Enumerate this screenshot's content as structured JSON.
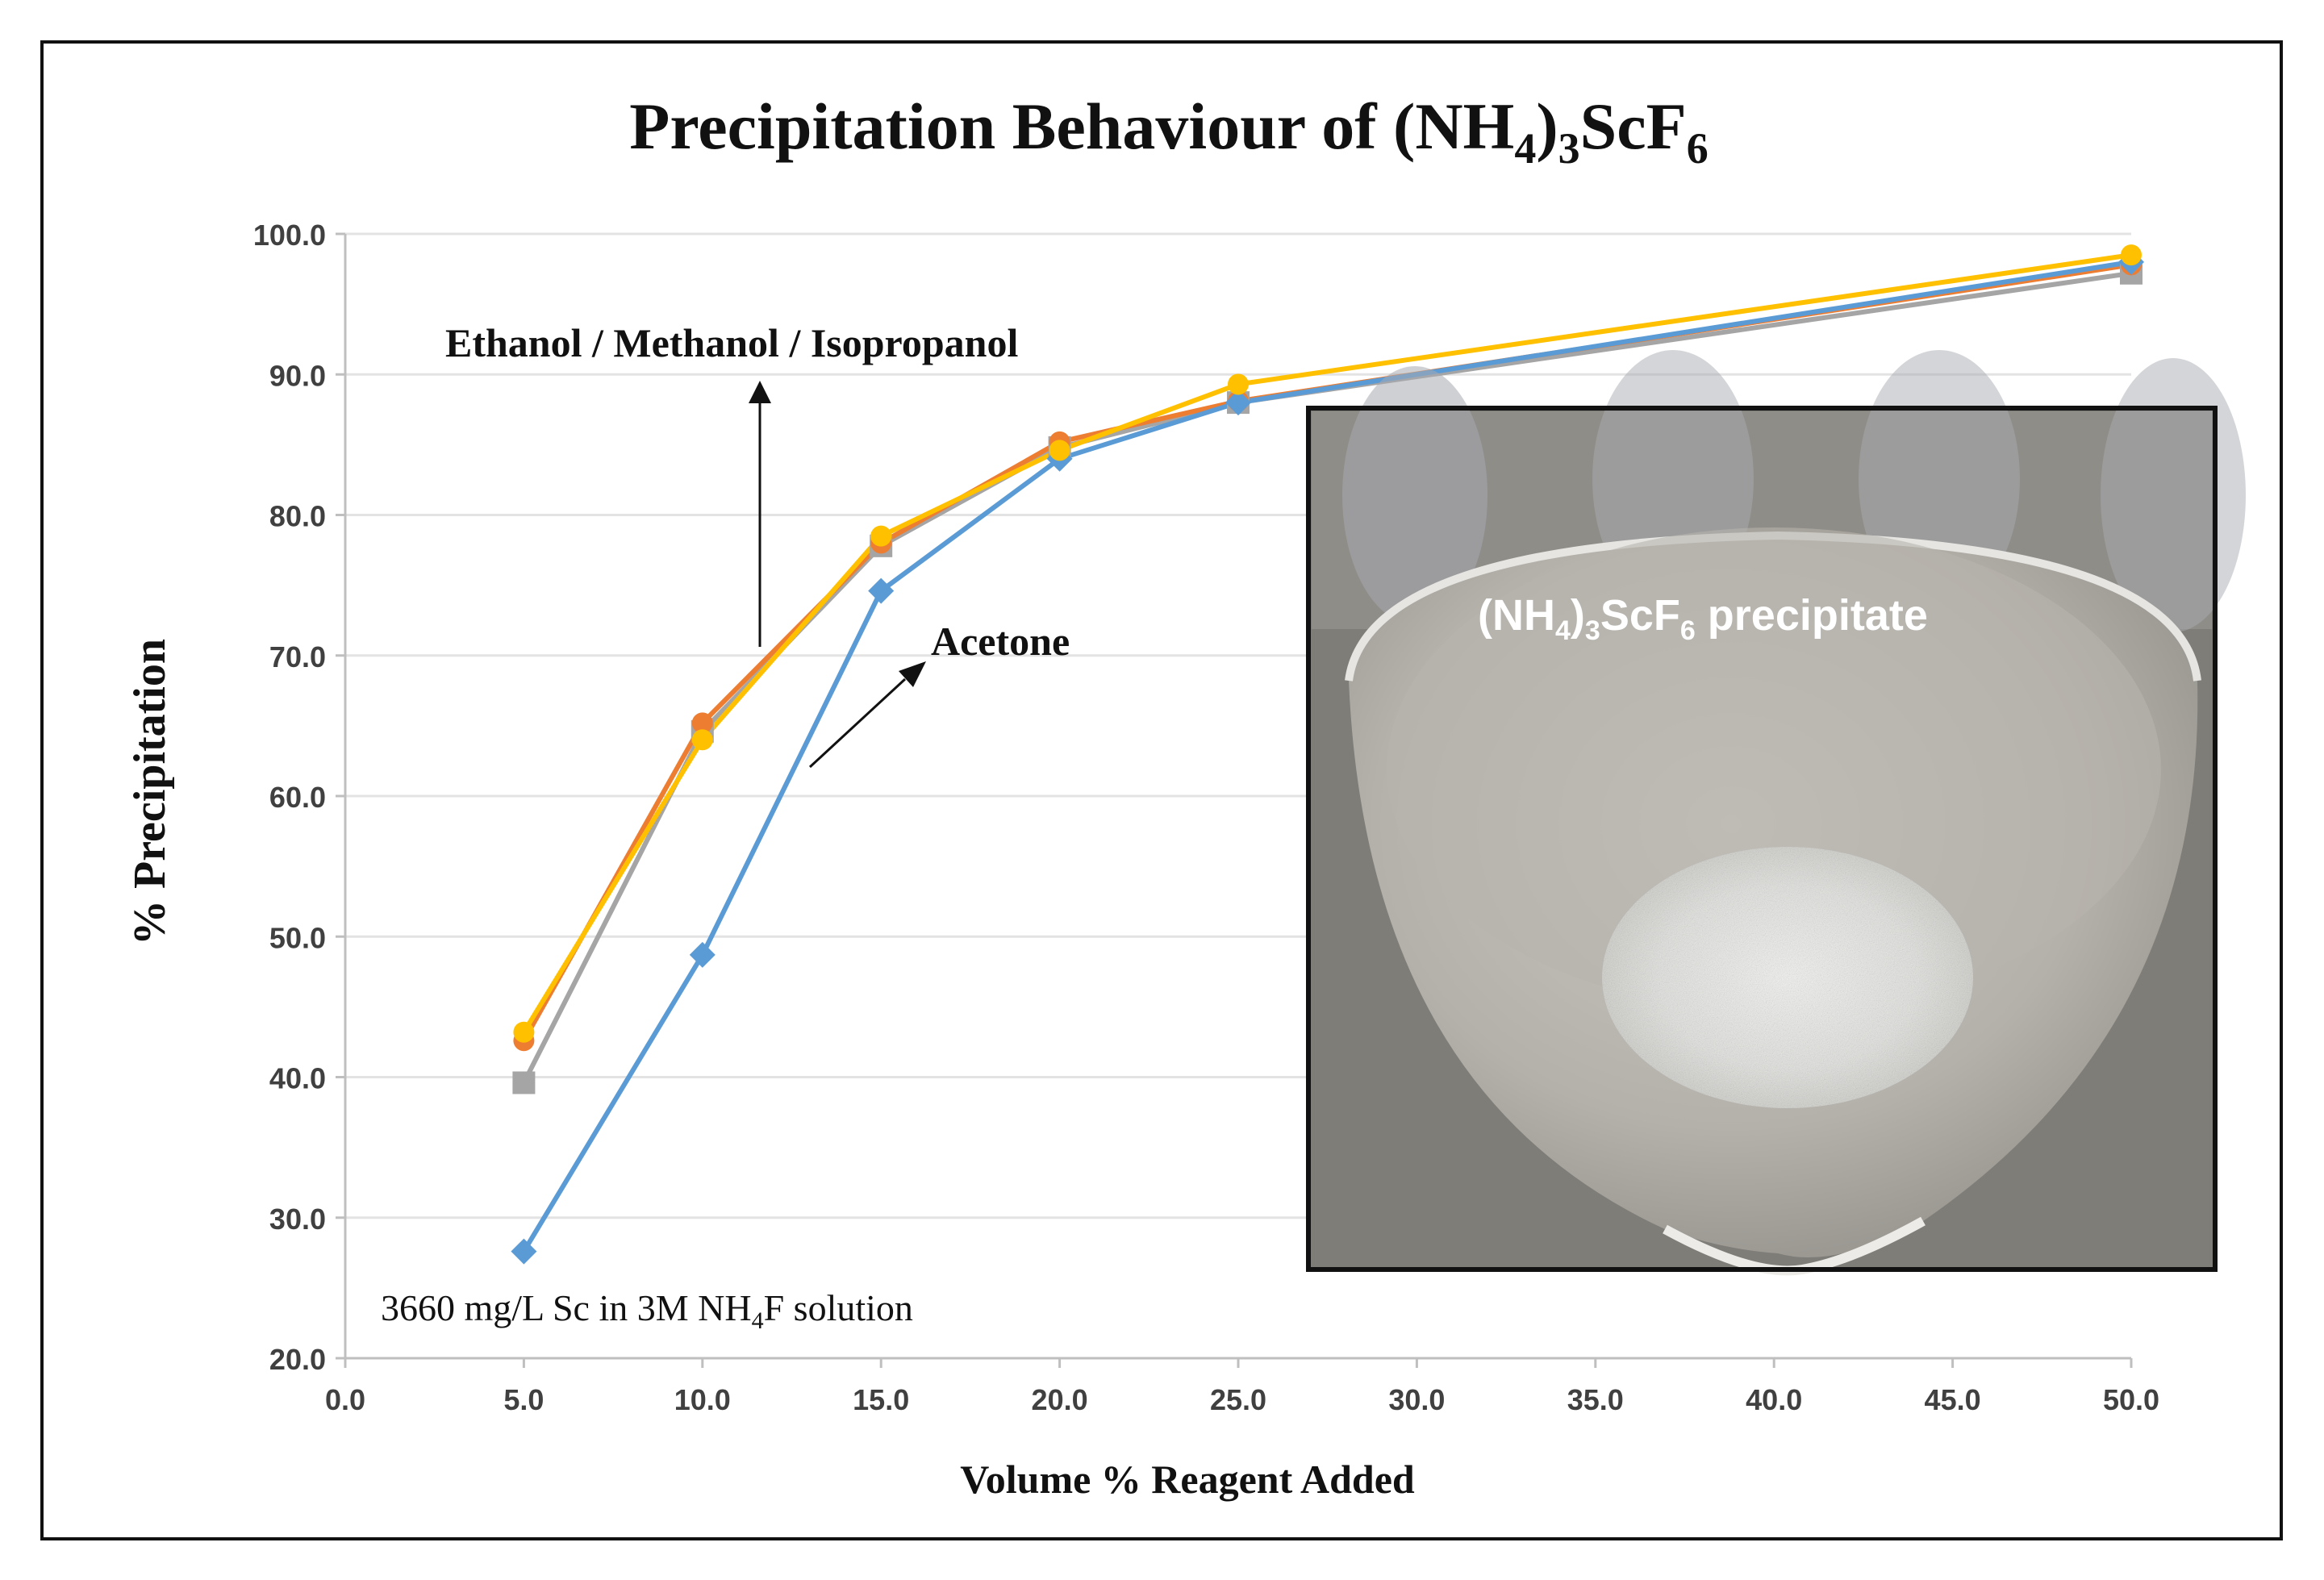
{
  "chart_data": {
    "type": "line",
    "title": {
      "main": "Precipitation Behaviour of (NH",
      "sub1": "4",
      "mid": ")",
      "sub2": "3",
      "tail": "ScF",
      "sub3": "6"
    },
    "xlabel": "Volume % Reagent Added",
    "ylabel": "% Precipitation",
    "ylim": [
      20,
      100
    ],
    "ytick_step": 10,
    "x_tick_labels": [
      "0.0",
      "5.0",
      "10.0",
      "15.0",
      "20.0",
      "25.0",
      "30.0",
      "35.0",
      "40.0",
      "45.0",
      "50.0"
    ],
    "x_tick_slots": 11,
    "grid": true,
    "series": [
      {
        "name": "Acetone",
        "color": "#5B9BD5",
        "marker": "diamond",
        "points": [
          [
            5,
            27.6
          ],
          [
            10,
            48.7
          ],
          [
            15,
            74.6
          ],
          [
            20,
            84.0
          ],
          [
            25,
            88.0
          ],
          [
            50,
            98.0
          ]
        ]
      },
      {
        "name": "Ethanol",
        "color": "#ED7D31",
        "marker": "circle",
        "points": [
          [
            5,
            42.6
          ],
          [
            10,
            65.2
          ],
          [
            15,
            78.0
          ],
          [
            20,
            85.2
          ],
          [
            25,
            88.1
          ],
          [
            50,
            97.8
          ]
        ]
      },
      {
        "name": "Methanol",
        "color": "#A5A5A5",
        "marker": "square",
        "points": [
          [
            5,
            39.6
          ],
          [
            10,
            64.6
          ],
          [
            15,
            77.8
          ],
          [
            20,
            84.8
          ],
          [
            25,
            88.0
          ],
          [
            50,
            97.2
          ]
        ]
      },
      {
        "name": "Isopropanol",
        "color": "#FFC000",
        "marker": "circle",
        "points": [
          [
            5,
            43.2
          ],
          [
            10,
            64.0
          ],
          [
            15,
            78.5
          ],
          [
            20,
            84.6
          ],
          [
            25,
            89.3
          ],
          [
            50,
            98.5
          ]
        ]
      }
    ],
    "annotations": {
      "alcohols_label": "Ethanol / Methanol / Isopropanol",
      "acetone_label": "Acetone",
      "solution_note": {
        "pre": "3660 mg/L Sc in 3M NH",
        "sub": "4",
        "post": "F solution"
      }
    },
    "inset": {
      "label": {
        "pre": "(NH",
        "sub1": "4",
        "mid": ")",
        "sub2": "3",
        "mid2": "ScF",
        "sub3": "6",
        "post": " precipitate"
      }
    }
  }
}
